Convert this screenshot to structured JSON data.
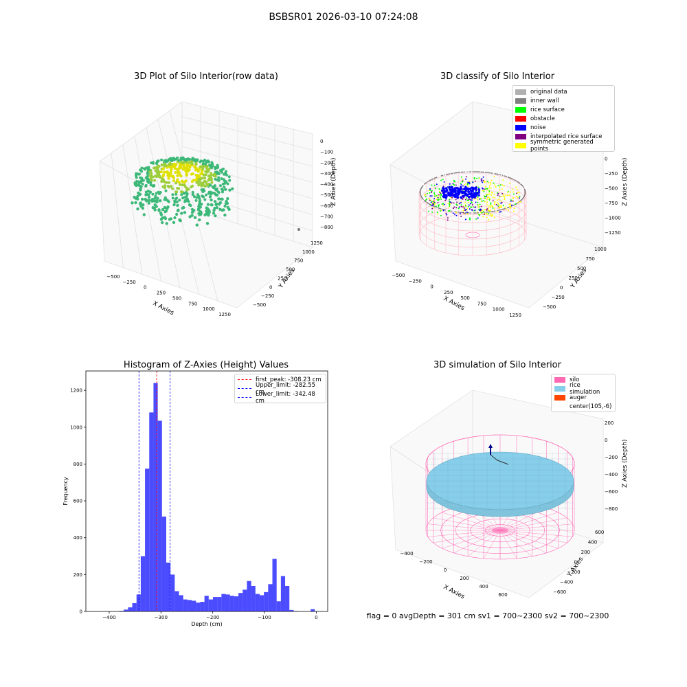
{
  "figure": {
    "suptitle": "BSBSR01 2026-03-10 07:24:08",
    "status_text": "flag = 0     avgDepth = 301 cm  sv1 = 700~2300  sv2 = 700~2300"
  },
  "panels": {
    "raw": {
      "title": "3D Plot of Silo Interior(row data)",
      "xlabel": "X Axies",
      "ylabel": "Y Axies",
      "zlabel": "Z Axies (Depth)",
      "xticks": [
        "−500",
        "−250",
        "0",
        "250",
        "500",
        "750",
        "1000",
        "1250"
      ],
      "yticks": [
        "−500",
        "−250",
        "0",
        "250",
        "500",
        "750",
        "1000",
        "1250"
      ],
      "zticks": [
        "0",
        "−100",
        "−200",
        "−300",
        "−400",
        "−500",
        "−600",
        "−700",
        "−800"
      ]
    },
    "classify": {
      "title": "3D classify of Silo Interior",
      "xlabel": "X Axies",
      "ylabel": "Y Axies",
      "zlabel": "Z Axies (Depth)",
      "xticks": [
        "−500",
        "−250",
        "0",
        "250",
        "500",
        "750",
        "1000",
        "1250"
      ],
      "yticks": [
        "−500",
        "−250",
        "0",
        "250",
        "500",
        "750",
        "1000"
      ],
      "zticks": [
        "250",
        "0",
        "−250",
        "−500",
        "−750",
        "−1000",
        "−1250"
      ],
      "legend": [
        {
          "label": "original data",
          "color": "#b0b0b0"
        },
        {
          "label": "inner wall",
          "color": "#808080"
        },
        {
          "label": "rice surface",
          "color": "#00ff00"
        },
        {
          "label": "obstacle",
          "color": "#ff0000"
        },
        {
          "label": "noise",
          "color": "#0000ff"
        },
        {
          "label": "interpolated rice surface",
          "color": "#800080"
        },
        {
          "label": "symmetric generated points",
          "color": "#ffff00"
        }
      ]
    },
    "sim": {
      "title": "3D simulation of Silo Interior",
      "xlabel": "X Axies",
      "ylabel": "Y Axies",
      "zlabel": "Z Axies (Depth)",
      "xticks": [
        "−400",
        "−200",
        "0",
        "200",
        "400",
        "600"
      ],
      "yticks": [
        "−600",
        "−400",
        "−200",
        "0",
        "200",
        "400",
        "600"
      ],
      "zticks": [
        "200",
        "0",
        "−200",
        "−400",
        "−600",
        "−800"
      ],
      "legend": [
        {
          "label": "silo",
          "color": "#ff69b4"
        },
        {
          "label": "rice simulation",
          "color": "#87ceeb"
        },
        {
          "label": "auger",
          "color": "#ff4500"
        },
        {
          "label": "center(105,-6)",
          "color": "#ffffff"
        }
      ]
    }
  },
  "chart_data": {
    "type": "bar",
    "title": "Histogram of Z-Axies (Height) Values",
    "xlabel": "Depth (cm)",
    "ylabel": "Frequency",
    "xlim": [
      -445,
      22
    ],
    "ylim": [
      0,
      1305
    ],
    "xticks": [
      -400,
      -300,
      -200,
      -100,
      0
    ],
    "yticks": [
      0,
      200,
      400,
      600,
      800,
      1000,
      1200
    ],
    "bar_color": "#0000ff",
    "bin_width": 8.2,
    "bins": [
      {
        "x": -380,
        "count": 3
      },
      {
        "x": -371.8,
        "count": 10
      },
      {
        "x": -363.6,
        "count": 22
      },
      {
        "x": -355.4,
        "count": 45
      },
      {
        "x": -347.2,
        "count": 92
      },
      {
        "x": -339,
        "count": 300
      },
      {
        "x": -330.8,
        "count": 775
      },
      {
        "x": -322.6,
        "count": 1080
      },
      {
        "x": -314.4,
        "count": 1240
      },
      {
        "x": -306.2,
        "count": 1035
      },
      {
        "x": -298,
        "count": 515
      },
      {
        "x": -289.8,
        "count": 265
      },
      {
        "x": -281.6,
        "count": 200
      },
      {
        "x": -273.4,
        "count": 110
      },
      {
        "x": -265.2,
        "count": 88
      },
      {
        "x": -257,
        "count": 65
      },
      {
        "x": -248.8,
        "count": 62
      },
      {
        "x": -240.6,
        "count": 58
      },
      {
        "x": -232.4,
        "count": 48
      },
      {
        "x": -224.2,
        "count": 52
      },
      {
        "x": -216,
        "count": 85
      },
      {
        "x": -207.8,
        "count": 65
      },
      {
        "x": -199.6,
        "count": 78
      },
      {
        "x": -191.4,
        "count": 78
      },
      {
        "x": -183.2,
        "count": 95
      },
      {
        "x": -175,
        "count": 92
      },
      {
        "x": -166.8,
        "count": 85
      },
      {
        "x": -158.6,
        "count": 82
      },
      {
        "x": -150.4,
        "count": 100
      },
      {
        "x": -142.2,
        "count": 118
      },
      {
        "x": -134,
        "count": 165
      },
      {
        "x": -125.8,
        "count": 138
      },
      {
        "x": -117.6,
        "count": 95
      },
      {
        "x": -109.4,
        "count": 88
      },
      {
        "x": -101.2,
        "count": 105
      },
      {
        "x": -93,
        "count": 148
      },
      {
        "x": -84.8,
        "count": 285
      },
      {
        "x": -76.6,
        "count": 55
      },
      {
        "x": -68.4,
        "count": 192
      },
      {
        "x": -60.2,
        "count": 138
      },
      {
        "x": -52,
        "count": 8
      },
      {
        "x": -43.8,
        "count": 2
      },
      {
        "x": -11,
        "count": 12
      }
    ],
    "vlines": [
      {
        "x": -308.23,
        "color": "#ff0000",
        "label": "first_peak: -308.23 cm"
      },
      {
        "x": -282.55,
        "color": "#0000ff",
        "label": "Upper_limit: -282.55 cm"
      },
      {
        "x": -342.48,
        "color": "#0000ff",
        "label": "Lower_limit: -342.48 cm"
      }
    ],
    "legend_position": "top-right"
  }
}
